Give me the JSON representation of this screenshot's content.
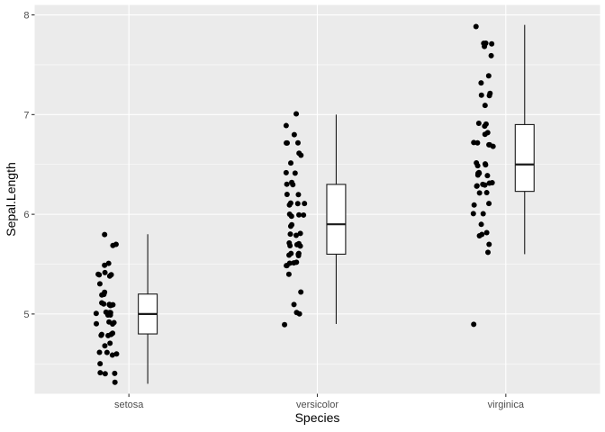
{
  "chart_data": {
    "type": "boxplot-jitter",
    "xlabel": "Species",
    "ylabel": "Sepal.Length",
    "categories": [
      "setosa",
      "versicolor",
      "virginica"
    ],
    "ylim": [
      4.2,
      8.1
    ],
    "yticks": [
      5,
      6,
      7,
      8
    ],
    "ytick_labels": [
      "5",
      "6",
      "7",
      "8"
    ],
    "grid": true,
    "colors": {
      "panel": "#ebebeb",
      "grid": "#ffffff",
      "points": "#000000",
      "box_fill": "#ffffff",
      "box_line": "#1a1a1a"
    },
    "boxes": [
      {
        "category": "setosa",
        "min": 4.3,
        "q1": 4.8,
        "median": 5.0,
        "q3": 5.2,
        "max": 5.8
      },
      {
        "category": "versicolor",
        "min": 4.9,
        "q1": 5.6,
        "median": 5.9,
        "q3": 6.3,
        "max": 7.0
      },
      {
        "category": "virginica",
        "min": 5.6,
        "q1": 6.23,
        "median": 6.5,
        "q3": 6.9,
        "max": 7.9
      }
    ],
    "points": [
      {
        "category": "setosa",
        "values": [
          5.1,
          4.9,
          4.7,
          4.6,
          5.0,
          5.4,
          4.6,
          5.0,
          4.4,
          4.9,
          5.4,
          4.8,
          4.8,
          4.3,
          5.8,
          5.7,
          5.4,
          5.1,
          5.7,
          5.1,
          5.4,
          5.1,
          4.6,
          5.1,
          4.8,
          5.0,
          5.0,
          5.2,
          5.2,
          4.7,
          4.8,
          5.4,
          5.2,
          5.5,
          4.9,
          5.0,
          5.5,
          4.9,
          4.4,
          5.1,
          5.0,
          4.5,
          4.4,
          5.0,
          5.1,
          4.8,
          5.1,
          4.6,
          5.3,
          5.0
        ]
      },
      {
        "category": "versicolor",
        "values": [
          7.0,
          6.4,
          6.9,
          5.5,
          6.5,
          5.7,
          6.3,
          4.9,
          6.6,
          5.2,
          5.0,
          5.9,
          6.0,
          6.1,
          5.6,
          6.7,
          5.6,
          5.8,
          6.2,
          5.6,
          5.9,
          6.1,
          6.3,
          6.1,
          6.4,
          6.6,
          6.8,
          6.7,
          6.0,
          5.7,
          5.5,
          5.5,
          5.8,
          6.0,
          5.4,
          6.0,
          6.7,
          6.3,
          5.6,
          5.5,
          5.5,
          6.1,
          5.8,
          5.0,
          5.6,
          5.7,
          5.7,
          6.2,
          5.1,
          5.7
        ]
      },
      {
        "category": "virginica",
        "values": [
          6.3,
          5.8,
          7.1,
          6.3,
          6.5,
          7.6,
          4.9,
          7.3,
          6.7,
          7.2,
          6.5,
          6.4,
          6.8,
          5.7,
          5.8,
          6.4,
          6.5,
          7.7,
          7.7,
          6.0,
          6.9,
          5.6,
          7.7,
          6.3,
          6.7,
          7.2,
          6.2,
          6.1,
          6.4,
          7.2,
          7.4,
          7.9,
          6.4,
          6.3,
          6.1,
          7.7,
          6.3,
          6.4,
          6.0,
          6.9,
          6.7,
          6.9,
          5.8,
          6.8,
          6.7,
          6.7,
          6.3,
          6.5,
          6.2,
          5.9
        ]
      }
    ]
  }
}
